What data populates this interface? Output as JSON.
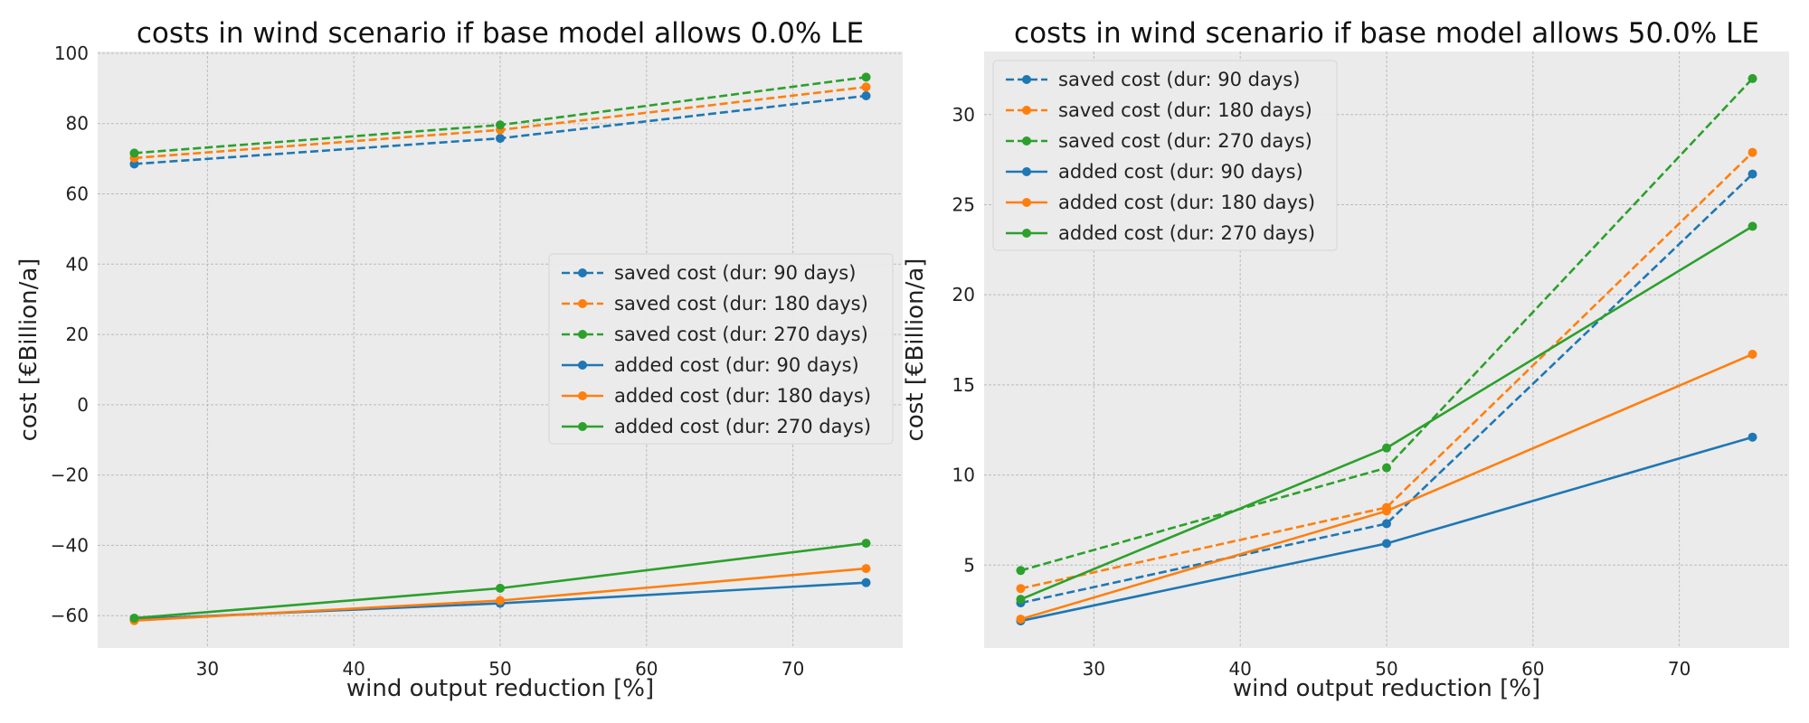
{
  "chart_data": [
    {
      "type": "line",
      "title": "costs in wind scenario if base model allows 0.0% LE",
      "xlabel": "wind output reduction [%]",
      "ylabel": "cost [€Billion/a]",
      "xlim": [
        22.5,
        77.5
      ],
      "ylim": [
        -69.2,
        100.5
      ],
      "xticks": [
        30,
        40,
        50,
        60,
        70
      ],
      "xtick_labels": [
        "30",
        "40",
        "50",
        "60",
        "70"
      ],
      "yticks": [
        -60,
        -40,
        -20,
        0,
        20,
        40,
        60,
        80,
        100
      ],
      "ytick_labels": [
        "−60",
        "−40",
        "−20",
        "0",
        "20",
        "40",
        "60",
        "80",
        "100"
      ],
      "grid": true,
      "legend_position": "center-right",
      "x": [
        25,
        50,
        75
      ],
      "series": [
        {
          "name": "saved cost (dur: 90 days)",
          "color": "#1f77b4",
          "style": "dashed",
          "values": [
            68.5,
            75.8,
            87.9
          ]
        },
        {
          "name": "saved cost (dur: 180 days)",
          "color": "#ff7f0e",
          "style": "dashed",
          "values": [
            70.2,
            78.2,
            90.4
          ]
        },
        {
          "name": "saved cost (dur: 270 days)",
          "color": "#2ca02c",
          "style": "dashed",
          "values": [
            71.6,
            79.6,
            93.2
          ]
        },
        {
          "name": "added cost (dur: 90 days)",
          "color": "#1f77b4",
          "style": "solid",
          "values": [
            -61.0,
            -56.5,
            -50.6
          ]
        },
        {
          "name": "added cost (dur: 180 days)",
          "color": "#ff7f0e",
          "style": "solid",
          "values": [
            -61.4,
            -55.7,
            -46.6
          ]
        },
        {
          "name": "added cost (dur: 270 days)",
          "color": "#2ca02c",
          "style": "solid",
          "values": [
            -60.7,
            -52.2,
            -39.4
          ]
        }
      ]
    },
    {
      "type": "line",
      "title": "costs in wind scenario if base model allows 50.0% LE",
      "xlabel": "wind output reduction [%]",
      "ylabel": "cost [€Billion/a]",
      "xlim": [
        22.5,
        77.5
      ],
      "ylim": [
        0.4,
        33.5
      ],
      "xticks": [
        30,
        40,
        50,
        60,
        70
      ],
      "xtick_labels": [
        "30",
        "40",
        "50",
        "60",
        "70"
      ],
      "yticks": [
        5,
        10,
        15,
        20,
        25,
        30
      ],
      "ytick_labels": [
        "5",
        "10",
        "15",
        "20",
        "25",
        "30"
      ],
      "grid": true,
      "legend_position": "top-left",
      "x": [
        25,
        50,
        75
      ],
      "series": [
        {
          "name": "saved cost (dur: 90 days)",
          "color": "#1f77b4",
          "style": "dashed",
          "values": [
            2.9,
            7.3,
            26.7
          ]
        },
        {
          "name": "saved cost (dur: 180 days)",
          "color": "#ff7f0e",
          "style": "dashed",
          "values": [
            3.7,
            8.2,
            27.9
          ]
        },
        {
          "name": "saved cost (dur: 270 days)",
          "color": "#2ca02c",
          "style": "dashed",
          "values": [
            4.7,
            10.4,
            32.0
          ]
        },
        {
          "name": "added cost (dur: 90 days)",
          "color": "#1f77b4",
          "style": "solid",
          "values": [
            1.9,
            6.2,
            12.1
          ]
        },
        {
          "name": "added cost (dur: 180 days)",
          "color": "#ff7f0e",
          "style": "solid",
          "values": [
            2.0,
            8.0,
            16.7
          ]
        },
        {
          "name": "added cost (dur: 270 days)",
          "color": "#2ca02c",
          "style": "solid",
          "values": [
            3.1,
            11.5,
            23.8
          ]
        }
      ]
    }
  ]
}
